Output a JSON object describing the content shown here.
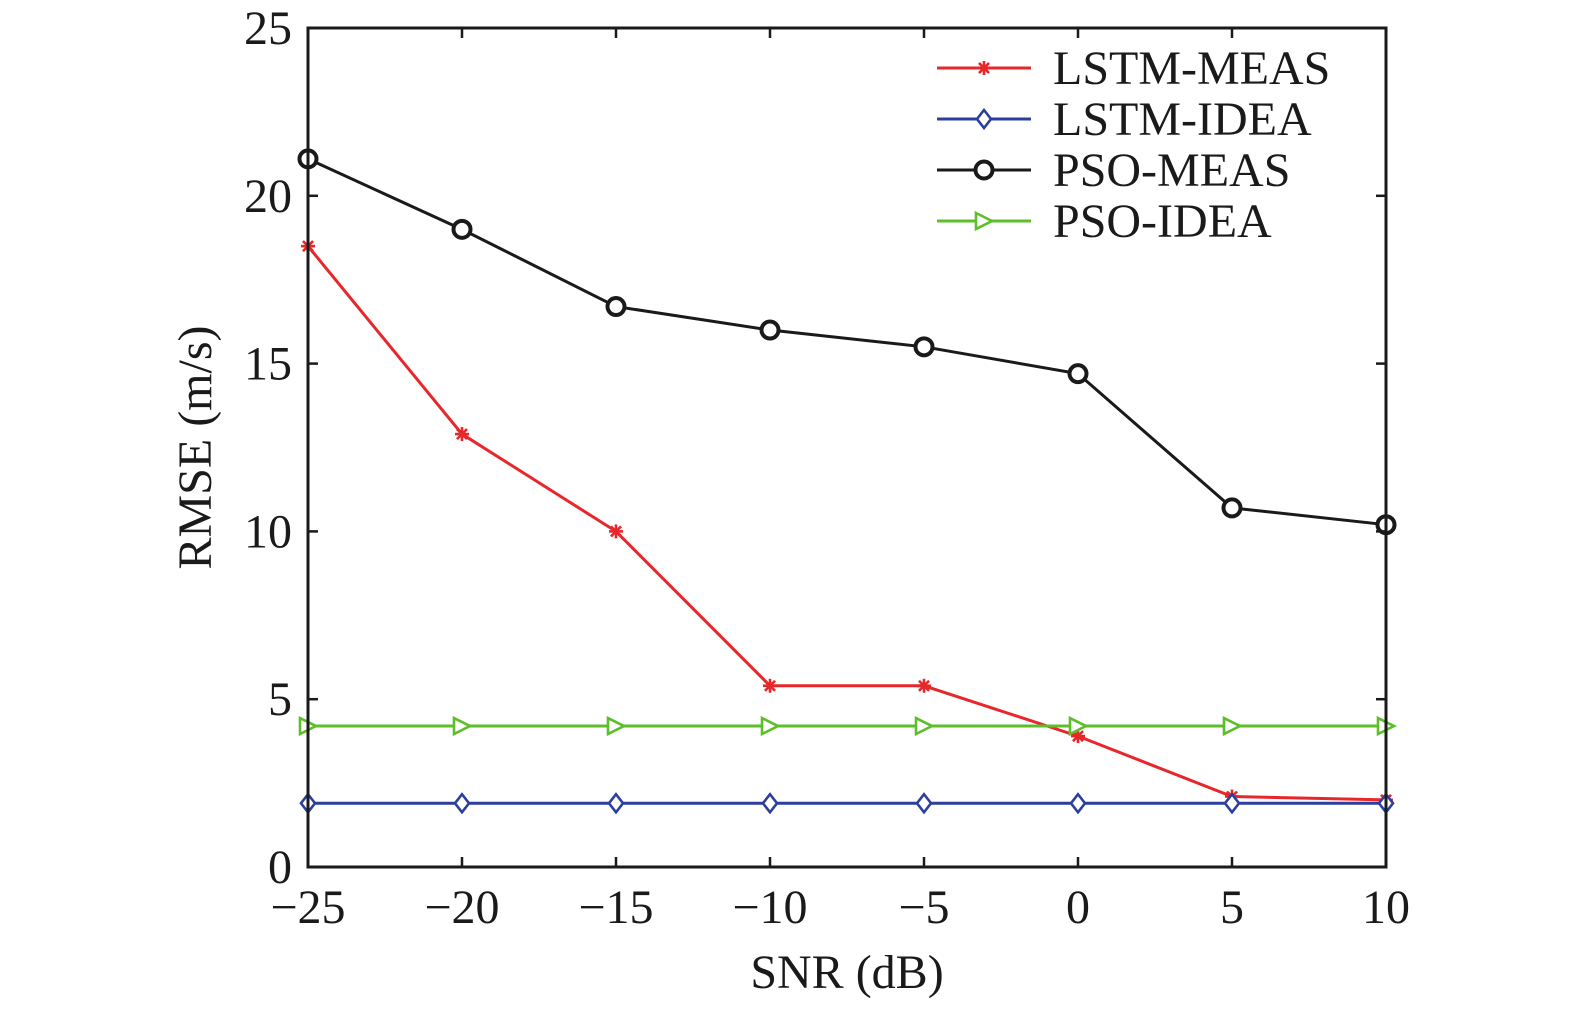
{
  "chart_data": {
    "type": "line",
    "title": "",
    "xlabel": "SNR (dB)",
    "ylabel": "RMSE (m/s)",
    "x": [
      -25,
      -20,
      -15,
      -10,
      -5,
      0,
      5,
      10
    ],
    "xlim": [
      -25,
      10
    ],
    "ylim": [
      0,
      25
    ],
    "xticks": [
      -25,
      -20,
      -15,
      -10,
      -5,
      0,
      5,
      10
    ],
    "xtick_labels": [
      "−25",
      "−20",
      "−15",
      "−10",
      "−5",
      "0",
      "5",
      "10"
    ],
    "yticks": [
      0,
      5,
      10,
      15,
      20,
      25
    ],
    "ytick_labels": [
      "0",
      "5",
      "10",
      "15",
      "20",
      "25"
    ],
    "grid": false,
    "legend_position": "top-right",
    "series": [
      {
        "name": "LSTM-MEAS",
        "color": "#e8272b",
        "marker": "asterisk",
        "values": [
          18.5,
          12.9,
          10.0,
          5.4,
          5.4,
          3.9,
          2.1,
          2.0
        ]
      },
      {
        "name": "LSTM-IDEA",
        "color": "#2b3f9e",
        "marker": "diamond",
        "values": [
          1.9,
          1.9,
          1.9,
          1.9,
          1.9,
          1.9,
          1.9,
          1.9
        ]
      },
      {
        "name": "PSO-MEAS",
        "color": "#1a1a1a",
        "marker": "circle",
        "values": [
          21.1,
          19.0,
          16.7,
          16.0,
          15.5,
          14.7,
          10.7,
          10.2
        ]
      },
      {
        "name": "PSO-IDEA",
        "color": "#5cbf2a",
        "marker": "triangle-right",
        "values": [
          4.2,
          4.2,
          4.2,
          4.2,
          4.2,
          4.2,
          4.2,
          4.2
        ]
      }
    ]
  }
}
